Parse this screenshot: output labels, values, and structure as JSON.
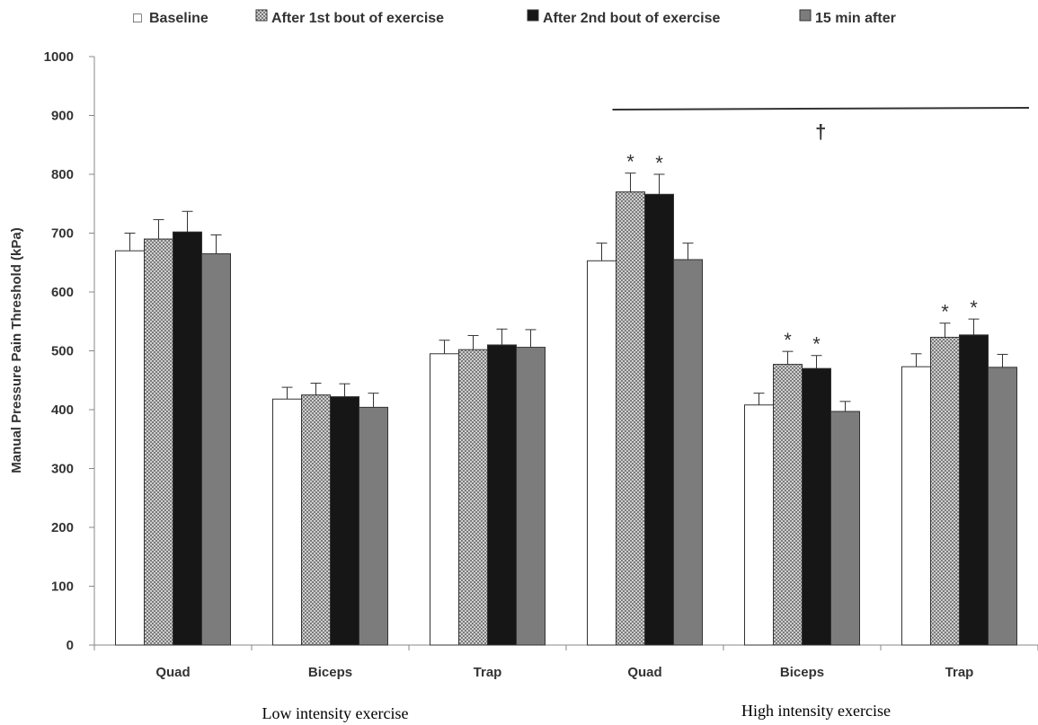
{
  "chart_data": {
    "type": "bar",
    "ylabel": "Manual Pressure Pain Threshold (kPa)",
    "xlabel": "",
    "ylim": [
      0,
      1000
    ],
    "yticks": [
      0,
      100,
      200,
      300,
      400,
      500,
      600,
      700,
      800,
      900,
      1000
    ],
    "grid": false,
    "legend_position": "top",
    "categories": [
      "Quad",
      "Biceps",
      "Trap",
      "Quad",
      "Biceps",
      "Trap"
    ],
    "groups": [
      {
        "label": "Low intensity exercise",
        "categories": [
          0,
          1,
          2
        ]
      },
      {
        "label": "High intensity exercise",
        "categories": [
          3,
          4,
          5
        ]
      }
    ],
    "series": [
      {
        "name": "Baseline",
        "pattern": "white",
        "color": "#ffffff",
        "values": [
          670,
          418,
          495,
          653,
          408,
          473
        ],
        "errors": [
          30,
          20,
          23,
          30,
          20,
          22
        ]
      },
      {
        "name": "After 1st bout of exercise",
        "pattern": "crosshatch",
        "color": "#a8a8a8",
        "values": [
          690,
          425,
          502,
          770,
          477,
          523
        ],
        "errors": [
          33,
          20,
          24,
          32,
          22,
          24
        ]
      },
      {
        "name": "After 2nd bout of exercise",
        "pattern": "solid",
        "color": "#161616",
        "values": [
          702,
          422,
          510,
          766,
          470,
          527
        ],
        "errors": [
          35,
          22,
          27,
          34,
          22,
          27
        ]
      },
      {
        "name": "15 min after",
        "pattern": "solid",
        "color": "#7c7c7c",
        "values": [
          665,
          404,
          506,
          655,
          397,
          472
        ],
        "errors": [
          32,
          24,
          30,
          28,
          17,
          22
        ]
      }
    ],
    "significance": {
      "star_symbol": "*",
      "stars": [
        {
          "category": 3,
          "series": 1
        },
        {
          "category": 3,
          "series": 2
        },
        {
          "category": 4,
          "series": 1
        },
        {
          "category": 4,
          "series": 2
        },
        {
          "category": 5,
          "series": 1
        },
        {
          "category": 5,
          "series": 2
        }
      ],
      "dagger_symbol": "†",
      "dagger_line_level": 910,
      "dagger_categories": [
        3,
        5
      ]
    }
  },
  "legend_box_glyph": "□"
}
